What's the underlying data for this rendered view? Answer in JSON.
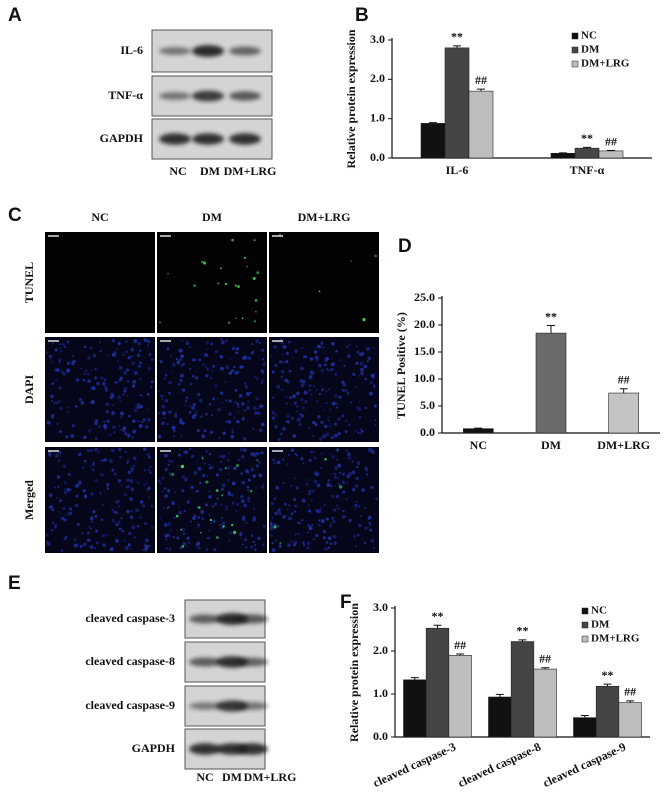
{
  "panel_labels": [
    "A",
    "B",
    "C",
    "D",
    "E",
    "F"
  ],
  "blot_a": {
    "rows": [
      "IL-6",
      "TNF-α",
      "GAPDH"
    ],
    "lanes": [
      "NC",
      "DM",
      "DM+LRG"
    ]
  },
  "micro_c": {
    "columns": [
      "NC",
      "DM",
      "DM+LRG"
    ],
    "rows": [
      "TUNEL",
      "DAPI",
      "Merged"
    ]
  },
  "blot_e": {
    "rows": [
      "cleaved caspase-3",
      "cleaved caspase-8",
      "cleaved caspase-9",
      "GAPDH"
    ],
    "lanes": [
      "NC",
      "DM",
      "DM+LRG"
    ]
  },
  "chart_data": [
    {
      "type": "bar",
      "ylabel": "Relative protein expression",
      "categories": [
        "IL-6",
        "TNF-α"
      ],
      "series": [
        {
          "name": "NC",
          "color": "#111111",
          "values": [
            0.88,
            0.12
          ],
          "errors": [
            0.02,
            0.01
          ]
        },
        {
          "name": "DM",
          "color": "#454545",
          "values": [
            2.8,
            0.25
          ],
          "errors": [
            0.05,
            0.02
          ],
          "annotations": [
            "**",
            "**"
          ]
        },
        {
          "name": "DM+LRG",
          "color": "#bdbdbd",
          "values": [
            1.7,
            0.18
          ],
          "errors": [
            0.05,
            0.01
          ],
          "annotations": [
            "##",
            "##"
          ]
        }
      ],
      "ylim": [
        0,
        3
      ],
      "yticks": [
        {
          "value": 0,
          "label": "0.0"
        },
        {
          "value": 1,
          "label": "1.0"
        },
        {
          "value": 2,
          "label": "2.0"
        },
        {
          "value": 3,
          "label": "3.0"
        }
      ],
      "legend": "upper right"
    },
    {
      "type": "bar",
      "ylabel": "TUNEL Positive (%)",
      "categories": [
        "NC",
        "DM",
        "DM+LRG"
      ],
      "values": [
        0.8,
        18.5,
        7.4
      ],
      "errors": [
        0.1,
        1.4,
        0.8
      ],
      "colors": [
        "#111111",
        "#6a6a6a",
        "#c4c4c4"
      ],
      "annotations": [
        null,
        "**",
        "##"
      ],
      "ylim": [
        0,
        25
      ],
      "yticks": [
        {
          "value": 0,
          "label": "0.0"
        },
        {
          "value": 5,
          "label": "5.0"
        },
        {
          "value": 10,
          "label": "10.0"
        },
        {
          "value": 15,
          "label": "15.0"
        },
        {
          "value": 20,
          "label": "20.0"
        },
        {
          "value": 25,
          "label": "25.0"
        }
      ]
    },
    {
      "type": "bar",
      "ylabel": "Relative protein expression",
      "categories": [
        "cleaved caspase-3",
        "cleaved caspase-8",
        "cleaved caspase-9"
      ],
      "series": [
        {
          "name": "NC",
          "color": "#111111",
          "values": [
            1.33,
            0.93,
            0.45
          ],
          "errors": [
            0.05,
            0.06,
            0.05
          ]
        },
        {
          "name": "DM",
          "color": "#454545",
          "values": [
            2.53,
            2.22,
            1.18
          ],
          "errors": [
            0.07,
            0.04,
            0.05
          ],
          "annotations": [
            "**",
            "**",
            "**"
          ]
        },
        {
          "name": "DM+LRG",
          "color": "#bdbdbd",
          "values": [
            1.9,
            1.58,
            0.8
          ],
          "errors": [
            0.03,
            0.03,
            0.04
          ],
          "annotations": [
            "##",
            "##",
            "##"
          ]
        }
      ],
      "ylim": [
        0,
        3
      ],
      "yticks": [
        {
          "value": 0,
          "label": "0.0"
        },
        {
          "value": 1,
          "label": "1.0"
        },
        {
          "value": 2,
          "label": "2.0"
        },
        {
          "value": 3,
          "label": "3.0"
        }
      ],
      "legend": "upper right"
    }
  ]
}
